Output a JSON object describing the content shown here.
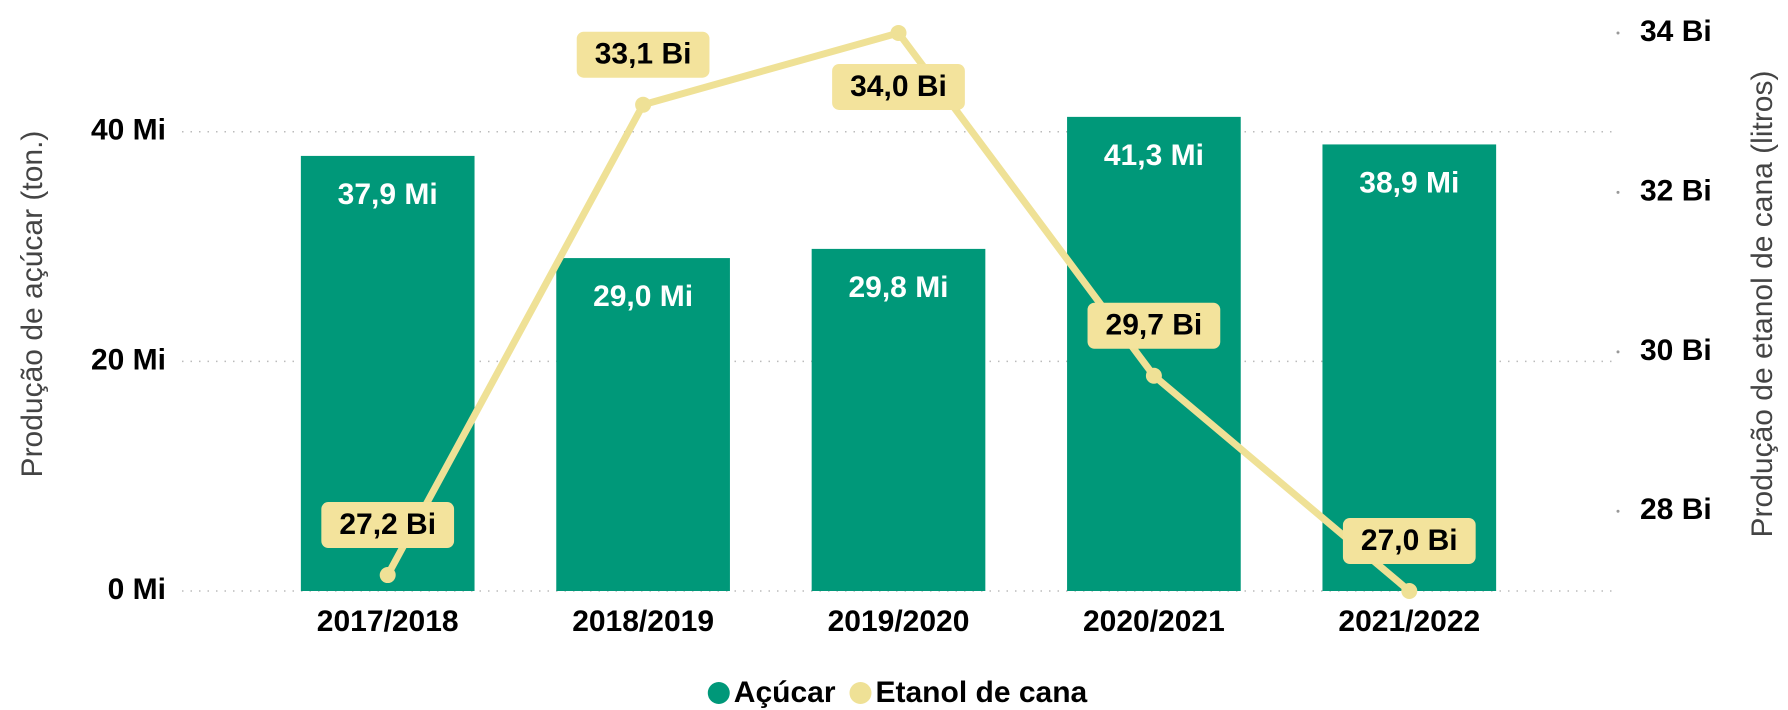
{
  "chart_data": {
    "type": "bar",
    "categories": [
      "2017/2018",
      "2018/2019",
      "2019/2020",
      "2020/2021",
      "2021/2022"
    ],
    "series": [
      {
        "name": "Açúcar",
        "type": "bar",
        "axis": "y",
        "color": "#009879",
        "values": [
          37.9,
          29.0,
          29.8,
          41.3,
          38.9
        ],
        "value_labels": [
          "37,9 Mi",
          "29,0 Mi",
          "29,8 Mi",
          "41,3 Mi",
          "38,9 Mi"
        ]
      },
      {
        "name": "Etanol de cana",
        "type": "line",
        "axis": "y2",
        "color": "#efe196",
        "values": [
          27.2,
          33.1,
          34.0,
          29.7,
          27.0
        ],
        "value_labels": [
          "27,2 Bi",
          "33,1 Bi",
          "34,0 Bi",
          "29,7 Bi",
          "27,0 Bi"
        ]
      }
    ],
    "ylabel": "Produção de açúcar (ton.)",
    "y2label": "Produção de etanol de cana (litros)",
    "ylim": [
      0,
      50
    ],
    "yticks": [
      {
        "value": 0,
        "label": "0 Mi"
      },
      {
        "value": 20,
        "label": "20 Mi"
      },
      {
        "value": 40,
        "label": "40 Mi"
      }
    ],
    "y2lim": [
      27,
      34.2
    ],
    "y2ticks": [
      {
        "value": 28,
        "label": "28 Bi"
      },
      {
        "value": 30,
        "label": "30 Bi"
      },
      {
        "value": 32,
        "label": "32 Bi"
      },
      {
        "value": 34,
        "label": "34 Bi"
      }
    ],
    "grid": true,
    "legend": "bottom"
  }
}
